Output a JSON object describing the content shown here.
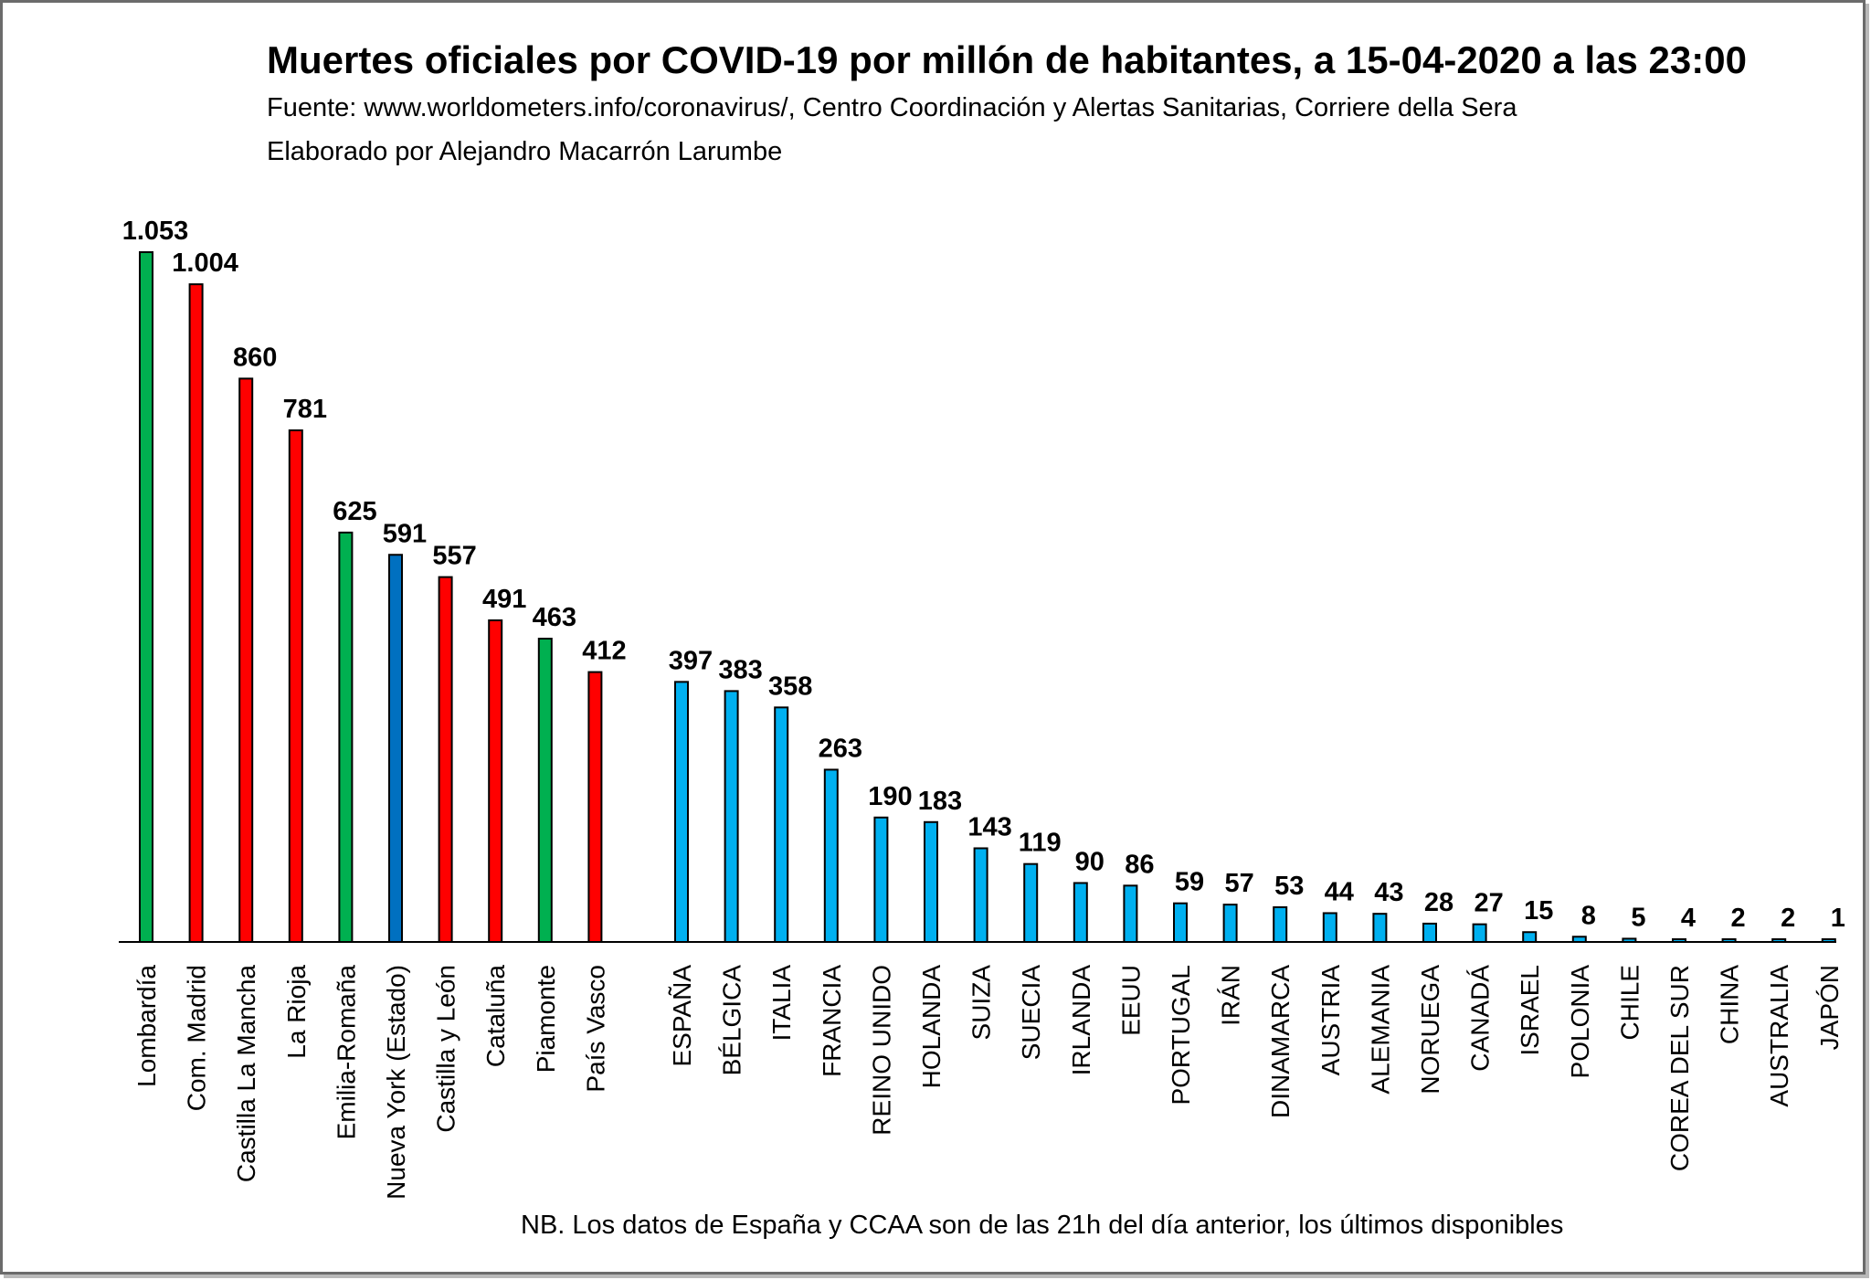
{
  "chart_data": {
    "type": "bar",
    "title": "Muertes oficiales  por COVID-19 por millón  de habitantes,  a 15-04-2020 a las 23:00",
    "subtitle": "Fuente:  www.worldometers.info/coronavirus/, Centro  Coordinación y Alertas Sanitarias, Corriere della Sera",
    "author": "Elaborado por Alejandro Macarrón Larumbe",
    "note": "NB.  Los datos de  España y CCAA  son de  las 21h del día anterior,  los últimos disponibles",
    "colors": {
      "green": "#00b050",
      "red": "#ff0000",
      "blue": "#0070c0",
      "lightblue": "#00b0f0"
    },
    "ylim": [
      0,
      1053
    ],
    "grid": false,
    "categories": [
      "Lombardía",
      "Com. Madrid",
      "Castilla La Mancha",
      "La Rioja",
      "Emilia-Romaña",
      "Nueva York (Estado)",
      "Castilla y León",
      "Cataluña",
      "Piamonte",
      "País Vasco",
      "ESPAÑA",
      "BÉLGICA",
      "ITALIA",
      "FRANCIA",
      "REINO UNIDO",
      "HOLANDA",
      "SUIZA",
      "SUECIA",
      "IRLANDA",
      "EEUU",
      "PORTUGAL",
      "IRÁN",
      "DINAMARCA",
      "AUSTRIA",
      "ALEMANIA",
      "NORUEGA",
      "CANADÁ",
      "ISRAEL",
      "POLONIA",
      "CHILE",
      "COREA DEL SUR",
      "CHINA",
      "AUSTRALIA",
      "JAPÓN"
    ],
    "values": [
      1053,
      1004,
      860,
      781,
      625,
      591,
      557,
      491,
      463,
      412,
      397,
      383,
      358,
      263,
      190,
      183,
      143,
      119,
      90,
      86,
      59,
      57,
      53,
      44,
      43,
      28,
      27,
      15,
      8,
      5,
      4,
      2,
      2,
      1
    ],
    "value_labels": [
      "1.053",
      "1.004",
      "860",
      "781",
      "625",
      "591",
      "557",
      "491",
      "463",
      "412",
      "397",
      "383",
      "358",
      "263",
      "190",
      "183",
      "143",
      "119",
      "90",
      "86",
      "59",
      "57",
      "53",
      "44",
      "43",
      "28",
      "27",
      "15",
      "8",
      "5",
      "4",
      "2",
      "2",
      "1"
    ],
    "bar_colors": [
      "green",
      "red",
      "red",
      "red",
      "green",
      "blue",
      "red",
      "red",
      "green",
      "red",
      "lightblue",
      "lightblue",
      "lightblue",
      "lightblue",
      "lightblue",
      "lightblue",
      "lightblue",
      "lightblue",
      "lightblue",
      "lightblue",
      "lightblue",
      "lightblue",
      "lightblue",
      "lightblue",
      "lightblue",
      "lightblue",
      "lightblue",
      "lightblue",
      "lightblue",
      "lightblue",
      "lightblue",
      "lightblue",
      "lightblue",
      "lightblue"
    ]
  }
}
